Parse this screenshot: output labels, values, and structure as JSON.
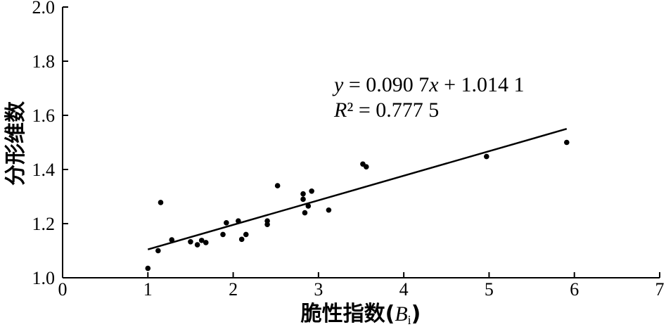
{
  "chart_data": {
    "type": "scatter",
    "xlabel": "脆性指数(",
    "xlabel_var": "B",
    "xlabel_sub": "i",
    "xlabel_close": ")",
    "ylabel": "分形维数",
    "xlim": [
      0,
      7
    ],
    "ylim": [
      1.0,
      2.0
    ],
    "x_ticks": [
      0,
      1,
      2,
      3,
      4,
      5,
      6,
      7
    ],
    "x_tick_labels": [
      "0",
      "1",
      "2",
      "3",
      "4",
      "5",
      "6",
      "7"
    ],
    "y_ticks": [
      1.0,
      1.2,
      1.4,
      1.6,
      1.8,
      2.0
    ],
    "y_tick_labels": [
      "1.0",
      "1.2",
      "1.4",
      "1.6",
      "1.8",
      "2.0"
    ],
    "grid": false,
    "points": {
      "x": [
        1.0,
        1.12,
        1.15,
        1.28,
        1.5,
        1.58,
        1.63,
        1.68,
        1.88,
        1.92,
        2.06,
        2.1,
        2.15,
        2.4,
        2.4,
        2.52,
        2.82,
        2.82,
        2.84,
        2.88,
        2.92,
        3.12,
        3.52,
        3.56,
        4.97,
        5.91
      ],
      "y": [
        1.035,
        1.1,
        1.278,
        1.14,
        1.133,
        1.122,
        1.138,
        1.13,
        1.16,
        1.203,
        1.21,
        1.142,
        1.16,
        1.21,
        1.197,
        1.34,
        1.31,
        1.29,
        1.24,
        1.265,
        1.32,
        1.25,
        1.42,
        1.41,
        1.448,
        1.5
      ]
    },
    "fit": {
      "slope": 0.0907,
      "intercept": 1.0141,
      "x_range": [
        1.0,
        5.91
      ]
    },
    "equation": {
      "line1_var": "y",
      "line1_rest": " = 0.090 7",
      "line1_var2": "x",
      "line1_tail": " + 1.014 1",
      "line2_var": "R",
      "line2_rest": "² = 0.777 5"
    }
  }
}
